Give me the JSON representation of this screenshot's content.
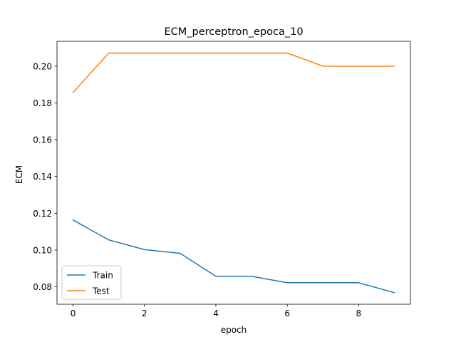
{
  "chart_data": {
    "type": "line",
    "title": "ECM_perceptron_epoca_10",
    "xlabel": "epoch",
    "ylabel": "ECM",
    "x": [
      0,
      1,
      2,
      3,
      4,
      5,
      6,
      7,
      8,
      9
    ],
    "xlim": [
      -0.45,
      9.45
    ],
    "ylim": [
      0.0705,
      0.2135
    ],
    "xticks": [
      0,
      2,
      4,
      6,
      8
    ],
    "yticks": [
      0.08,
      0.1,
      0.12,
      0.14,
      0.16,
      0.18,
      0.2
    ],
    "xtick_labels": [
      "0",
      "2",
      "4",
      "6",
      "8"
    ],
    "ytick_labels": [
      "0.08",
      "0.10",
      "0.12",
      "0.14",
      "0.16",
      "0.18",
      "0.20"
    ],
    "grid": false,
    "legend_position": "bottom-left",
    "series": [
      {
        "name": "Train",
        "color": "#1f77b4",
        "values": [
          0.1163,
          0.1055,
          0.1002,
          0.0982,
          0.0857,
          0.0857,
          0.0822,
          0.0822,
          0.0822,
          0.0768
        ]
      },
      {
        "name": "Test",
        "color": "#ff7f0e",
        "values": [
          0.1857,
          0.2071,
          0.2071,
          0.2071,
          0.2071,
          0.2071,
          0.2071,
          0.2,
          0.2,
          0.2
        ]
      }
    ]
  }
}
